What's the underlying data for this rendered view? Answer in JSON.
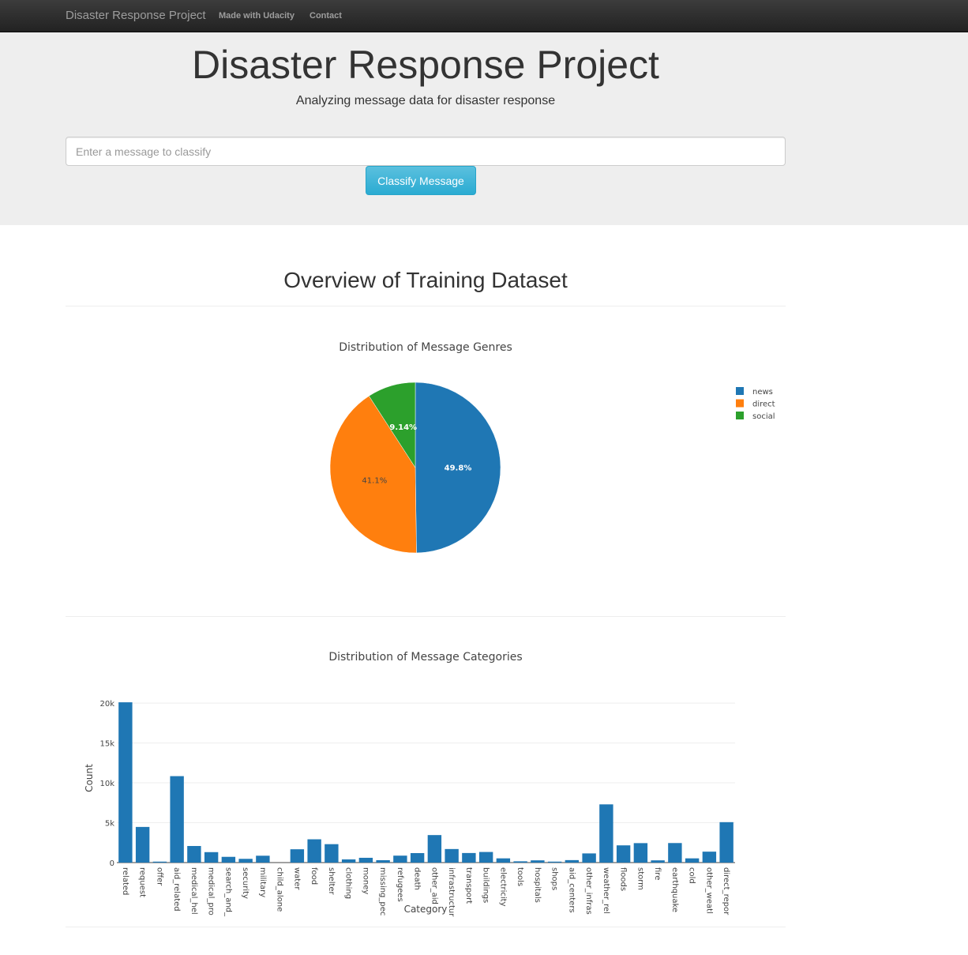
{
  "navbar": {
    "brand": "Disaster Response Project",
    "links": [
      "Made with Udacity",
      "Contact"
    ]
  },
  "jumbotron": {
    "title": "Disaster Response Project",
    "subtitle": "Analyzing message data for disaster response",
    "input_placeholder": "Enter a message to classify",
    "button_label": "Classify Message"
  },
  "overview_title": "Overview of Training Dataset",
  "chart_data": [
    {
      "type": "pie",
      "title": "Distribution of Message Genres",
      "labels": [
        "news",
        "direct",
        "social"
      ],
      "values": [
        49.8,
        41.1,
        9.14
      ],
      "value_labels": [
        "49.8%",
        "41.1%",
        "9.14%"
      ],
      "colors": [
        "#1f77b4",
        "#ff7f0e",
        "#2ca02c"
      ],
      "legend_position": "top-right"
    },
    {
      "type": "bar",
      "title": "Distribution of Message Categories",
      "xlabel": "Category",
      "ylabel": "Count",
      "ylim": [
        0,
        21000
      ],
      "yticks": [
        0,
        5000,
        10000,
        15000,
        20000
      ],
      "ytick_labels": [
        "0",
        "5k",
        "10k",
        "15k",
        "20k"
      ],
      "color": "#1f77b4",
      "grid": true,
      "categories": [
        "related",
        "request",
        "offer",
        "aid_related",
        "medical_hel",
        "medical_pro",
        "search_and_",
        "security",
        "military",
        "child_alone",
        "water",
        "food",
        "shelter",
        "clothing",
        "money",
        "missing_pec",
        "refugees",
        "death",
        "other_aid",
        "infrastructur",
        "transport",
        "buildings",
        "electricity",
        "tools",
        "hospitals",
        "shops",
        "aid_centers",
        "other_infras",
        "weather_rel",
        "floods",
        "storm",
        "fire",
        "earthquake",
        "cold",
        "other_weatl",
        "direct_repor"
      ],
      "values": [
        20100,
        4470,
        120,
        10840,
        2080,
        1310,
        720,
        470,
        860,
        0,
        1670,
        2920,
        2310,
        400,
        600,
        300,
        870,
        1190,
        3450,
        1700,
        1200,
        1330,
        530,
        160,
        280,
        120,
        310,
        1150,
        7300,
        2160,
        2440,
        280,
        2450,
        530,
        1370,
        5070
      ]
    }
  ]
}
